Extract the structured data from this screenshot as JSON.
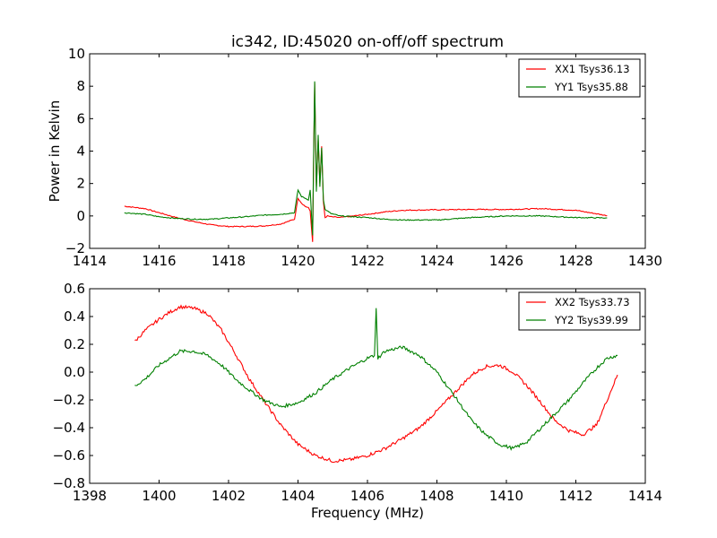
{
  "figure": {
    "title": "ic342, ID:45020 on-off/off spectrum"
  },
  "chart_data": [
    {
      "type": "line",
      "title": "ic342, ID:45020 on-off/off spectrum",
      "xlabel": "",
      "ylabel": "Power in Kelvin",
      "xlim": [
        1414,
        1430
      ],
      "ylim": [
        -2,
        10
      ],
      "xticks": [
        "1414",
        "1416",
        "1418",
        "1420",
        "1422",
        "1424",
        "1426",
        "1428",
        "1430"
      ],
      "yticks": [
        "−2",
        "0",
        "2",
        "4",
        "6",
        "8",
        "10"
      ],
      "grid": false,
      "legend_position": "top-right",
      "series": [
        {
          "name": "XX1 Tsys36.13",
          "color": "#ff0000",
          "x": [
            1415.0,
            1415.6,
            1416.0,
            1416.5,
            1417.0,
            1417.5,
            1418.0,
            1418.5,
            1419.0,
            1419.5,
            1419.9,
            1420.0,
            1420.1,
            1420.2,
            1420.3,
            1420.35,
            1420.42,
            1420.48,
            1420.53,
            1420.58,
            1420.63,
            1420.68,
            1420.73,
            1420.78,
            1420.85,
            1420.95,
            1421.2,
            1421.6,
            1422.0,
            1422.5,
            1423.0,
            1424.0,
            1425.0,
            1426.0,
            1427.0,
            1428.0,
            1428.9
          ],
          "y": [
            0.6,
            0.45,
            0.2,
            -0.1,
            -0.35,
            -0.55,
            -0.65,
            -0.65,
            -0.62,
            -0.5,
            -0.2,
            1.1,
            0.8,
            0.6,
            0.5,
            0.3,
            -1.6,
            8.2,
            1.8,
            4.7,
            2.0,
            4.3,
            0.9,
            -0.1,
            0.0,
            -0.05,
            -0.1,
            0.0,
            0.1,
            0.25,
            0.35,
            0.38,
            0.4,
            0.4,
            0.45,
            0.35,
            0.02
          ]
        },
        {
          "name": "YY1 Tsys35.88",
          "color": "#008000",
          "x": [
            1415.0,
            1415.6,
            1416.0,
            1416.5,
            1417.0,
            1417.5,
            1418.0,
            1418.5,
            1419.0,
            1419.5,
            1419.9,
            1420.0,
            1420.1,
            1420.2,
            1420.3,
            1420.35,
            1420.42,
            1420.48,
            1420.53,
            1420.58,
            1420.63,
            1420.68,
            1420.73,
            1420.78,
            1420.85,
            1420.95,
            1421.2,
            1421.6,
            1422.0,
            1422.5,
            1423.0,
            1424.0,
            1425.0,
            1426.0,
            1427.0,
            1428.0,
            1428.9
          ],
          "y": [
            0.2,
            0.1,
            -0.05,
            -0.15,
            -0.2,
            -0.2,
            -0.12,
            -0.05,
            0.05,
            0.1,
            0.2,
            1.6,
            1.2,
            1.1,
            1.0,
            1.6,
            -1.2,
            8.3,
            1.5,
            5.0,
            1.8,
            4.2,
            1.0,
            0.4,
            0.3,
            0.15,
            0.0,
            -0.05,
            -0.1,
            -0.2,
            -0.25,
            -0.25,
            -0.1,
            0.0,
            0.0,
            -0.1,
            -0.12
          ]
        }
      ]
    },
    {
      "type": "line",
      "title": "",
      "xlabel": "Frequency (MHz)",
      "ylabel": "",
      "xlim": [
        1398,
        1414
      ],
      "ylim": [
        -0.8,
        0.6
      ],
      "xticks": [
        "1398",
        "1400",
        "1402",
        "1404",
        "1406",
        "1408",
        "1410",
        "1412",
        "1414"
      ],
      "yticks": [
        "−0.8",
        "−0.6",
        "−0.4",
        "−0.2",
        "0.0",
        "0.2",
        "0.4",
        "0.6"
      ],
      "grid": false,
      "legend_position": "top-right",
      "series": [
        {
          "name": "XX2 Tsys33.73",
          "color": "#ff0000",
          "x": [
            1399.3,
            1399.6,
            1400.0,
            1400.3,
            1400.6,
            1401.0,
            1401.4,
            1401.8,
            1402.2,
            1402.6,
            1403.0,
            1403.5,
            1404.0,
            1404.5,
            1405.0,
            1405.5,
            1406.0,
            1406.5,
            1407.0,
            1407.5,
            1408.0,
            1408.5,
            1409.0,
            1409.4,
            1409.8,
            1410.2,
            1410.6,
            1411.0,
            1411.4,
            1411.8,
            1412.2,
            1412.6,
            1412.9,
            1413.2
          ],
          "y": [
            0.22,
            0.3,
            0.38,
            0.43,
            0.47,
            0.46,
            0.42,
            0.3,
            0.13,
            -0.05,
            -0.2,
            -0.38,
            -0.52,
            -0.6,
            -0.64,
            -0.63,
            -0.6,
            -0.55,
            -0.48,
            -0.4,
            -0.28,
            -0.15,
            -0.02,
            0.04,
            0.05,
            0.0,
            -0.1,
            -0.22,
            -0.35,
            -0.42,
            -0.45,
            -0.38,
            -0.2,
            -0.02
          ]
        },
        {
          "name": "YY2 Tsys39.99",
          "color": "#008000",
          "x": [
            1399.3,
            1399.6,
            1400.0,
            1400.3,
            1400.6,
            1401.0,
            1401.4,
            1401.8,
            1402.2,
            1402.6,
            1403.0,
            1403.5,
            1404.0,
            1404.5,
            1405.0,
            1405.5,
            1406.0,
            1406.2,
            1406.25,
            1406.3,
            1406.5,
            1407.0,
            1407.5,
            1408.0,
            1408.5,
            1409.0,
            1409.4,
            1409.8,
            1410.2,
            1410.6,
            1411.0,
            1411.4,
            1411.8,
            1412.2,
            1412.6,
            1412.9,
            1413.2
          ],
          "y": [
            -0.1,
            -0.05,
            0.05,
            0.1,
            0.15,
            0.15,
            0.12,
            0.05,
            -0.05,
            -0.13,
            -0.2,
            -0.25,
            -0.22,
            -0.15,
            -0.05,
            0.03,
            0.1,
            0.12,
            0.46,
            0.1,
            0.15,
            0.18,
            0.12,
            0.0,
            -0.17,
            -0.35,
            -0.45,
            -0.52,
            -0.55,
            -0.5,
            -0.4,
            -0.3,
            -0.2,
            -0.08,
            0.03,
            0.1,
            0.12
          ]
        }
      ]
    }
  ]
}
